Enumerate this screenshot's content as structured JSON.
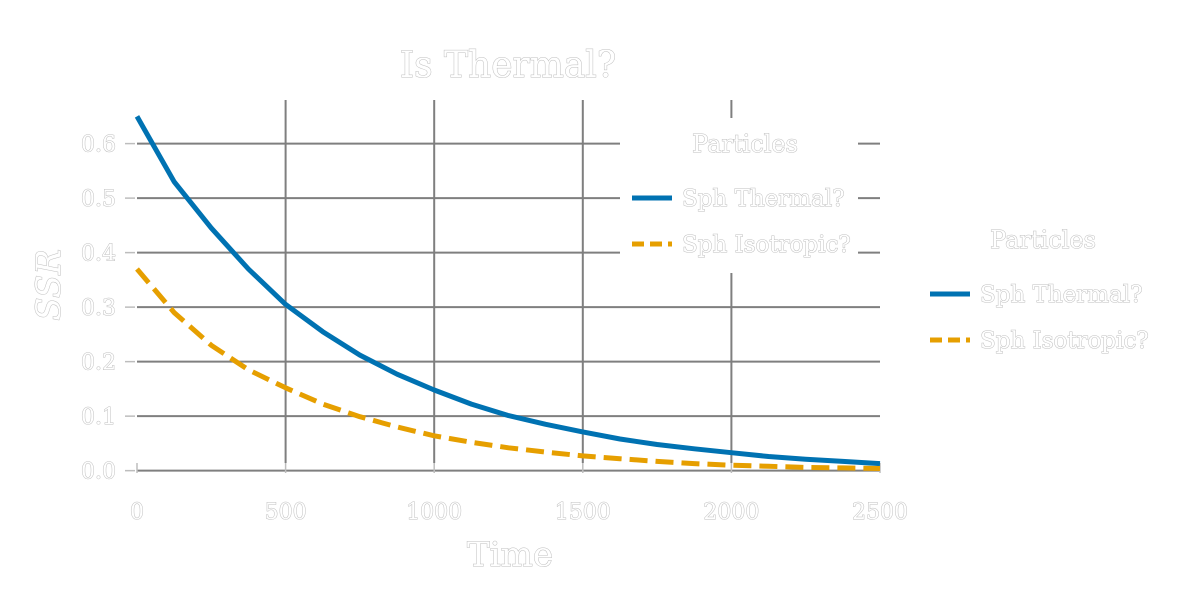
{
  "chart_data": {
    "type": "line",
    "title": "Is Thermal?",
    "xlabel": "Time",
    "ylabel": "SSR",
    "xlim": [
      0,
      2500
    ],
    "ylim": [
      -0.03,
      0.68
    ],
    "grid": true,
    "x_ticks": [
      0,
      500,
      1000,
      1500,
      2000,
      2500
    ],
    "y_ticks": [
      0.0,
      0.1,
      0.2,
      0.3,
      0.4,
      0.5,
      0.6
    ],
    "x_tick_labels": [
      "0",
      "500",
      "1000",
      "1500",
      "2000",
      "2500"
    ],
    "y_tick_labels": [
      "0.0",
      "0.1",
      "0.2",
      "0.3",
      "0.4",
      "0.5",
      "0.6"
    ],
    "x": [
      0,
      125,
      250,
      375,
      500,
      625,
      750,
      875,
      1000,
      1125,
      1250,
      1375,
      1500,
      1625,
      1750,
      1875,
      2000,
      2125,
      2250,
      2375,
      2500
    ],
    "series": [
      {
        "name": "Sph Thermal?",
        "color": "#0072b2",
        "style": "solid",
        "values": [
          0.65,
          0.53,
          0.445,
          0.37,
          0.305,
          0.255,
          0.212,
          0.177,
          0.148,
          0.122,
          0.101,
          0.085,
          0.071,
          0.058,
          0.048,
          0.04,
          0.033,
          0.026,
          0.021,
          0.017,
          0.013
        ]
      },
      {
        "name": "Sph Isotropic?",
        "color": "#e69f00",
        "style": "dashed",
        "values": [
          0.37,
          0.29,
          0.23,
          0.185,
          0.152,
          0.122,
          0.099,
          0.08,
          0.064,
          0.052,
          0.042,
          0.034,
          0.027,
          0.022,
          0.017,
          0.013,
          0.01,
          0.008,
          0.006,
          0.005,
          0.004
        ]
      }
    ],
    "legends": [
      {
        "title": "Particles",
        "location": "upper-right-inside",
        "entries": [
          "Sph Thermal?",
          "Sph Isotropic?"
        ]
      },
      {
        "title": "Particles",
        "location": "right-outside",
        "entries": [
          "Sph Thermal?",
          "Sph Isotropic?"
        ]
      }
    ]
  }
}
